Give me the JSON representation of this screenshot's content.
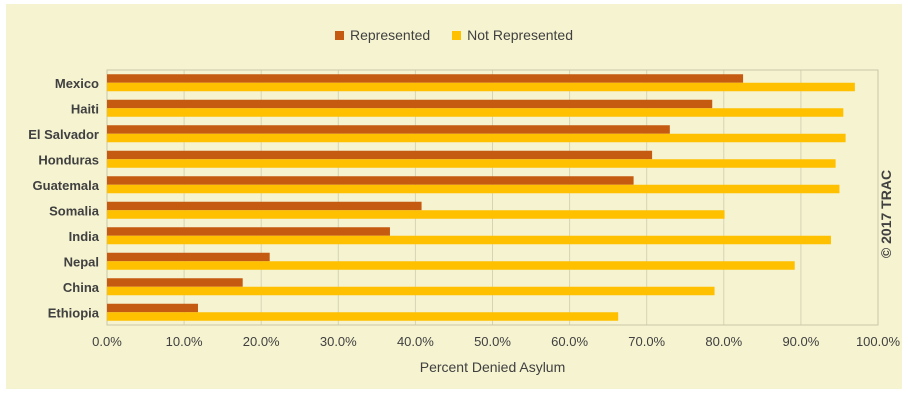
{
  "chart_data": {
    "type": "bar",
    "orientation": "horizontal",
    "categories": [
      "Mexico",
      "Haiti",
      "El Salvador",
      "Honduras",
      "Guatemala",
      "Somalia",
      "India",
      "Nepal",
      "China",
      "Ethiopia"
    ],
    "series": [
      {
        "name": "Represented",
        "color": "#c55a11",
        "values": [
          82.5,
          78.5,
          73.0,
          70.7,
          68.3,
          40.8,
          36.7,
          21.1,
          17.6,
          11.8
        ]
      },
      {
        "name": "Not Represented",
        "color": "#ffc000",
        "values": [
          97.0,
          95.5,
          95.8,
          94.5,
          95.0,
          80.1,
          93.9,
          89.2,
          78.8,
          66.3
        ]
      }
    ],
    "xlabel": "Percent Denied Asylum",
    "ylabel": "",
    "xlim": [
      0,
      100
    ],
    "xticks": [
      "0.0%",
      "10.0%",
      "20.0%",
      "30.0%",
      "40.0%",
      "50.0%",
      "60.0%",
      "70.0%",
      "80.0%",
      "90.0%",
      "100.0%"
    ],
    "grid": "vertical",
    "legend_position": "top-center",
    "background": "#f5f3d0"
  },
  "watermark": "© 2017 TRAC"
}
